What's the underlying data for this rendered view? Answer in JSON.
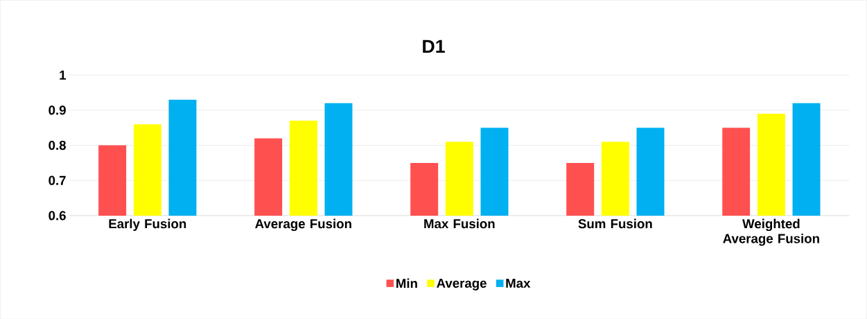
{
  "chart_data": {
    "type": "bar",
    "title": "D1",
    "categories": [
      "Early Fusion",
      "Average Fusion",
      "Max Fusion",
      "Sum Fusion",
      "Weighted Average Fusion"
    ],
    "series": [
      {
        "name": "Min",
        "color": "#ff5050",
        "values": [
          0.8,
          0.82,
          0.75,
          0.75,
          0.85
        ]
      },
      {
        "name": "Average",
        "color": "#ffff00",
        "values": [
          0.86,
          0.87,
          0.81,
          0.81,
          0.89
        ]
      },
      {
        "name": "Max",
        "color": "#00b0f0",
        "values": [
          0.93,
          0.92,
          0.85,
          0.85,
          0.92
        ]
      }
    ],
    "ylim": [
      0.6,
      1
    ],
    "yticks": [
      0.6,
      0.7,
      0.8,
      0.9,
      1
    ],
    "grid": "y",
    "legend": "bottom"
  }
}
